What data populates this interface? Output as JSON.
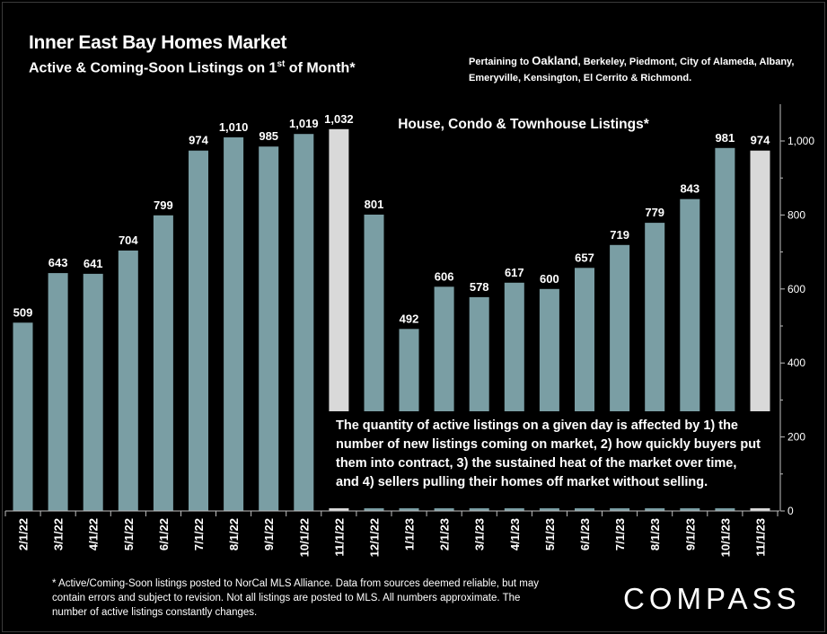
{
  "header": {
    "title": "Inner East Bay Homes Market",
    "subtitle_main": "Active & Coming-Soon Listings on 1",
    "subtitle_sup": "st",
    "subtitle_tail": " of Month*",
    "pertaining_prefix": "Pertaining to ",
    "pertaining_city": "Oakland",
    "pertaining_rest": ", Berkeley, Piedmont, City of Alameda, Albany, Emeryville, Kensington, El Cerrito & Richmond."
  },
  "annotation": "The quantity of active listings on a given day is affected by 1) the number of new listings coming on market, 2) how quickly buyers put them into contract, 3) the sustained heat of the market over time, and 4) sellers pulling their homes off market without selling.",
  "footnote": "* Active/Coming-Soon listings posted to NorCal MLS Alliance.  Data from sources deemed reliable, but may contain errors and subject to revision.  Not all listings are posted to MLS. All numbers approximate. The number of active listings constantly changes.",
  "logo": "COMPASS",
  "colors": {
    "background": "#000000",
    "bar": "#7a9ea4",
    "bar_highlight": "#d9d9d9",
    "text": "#ffffff"
  },
  "chart_data": {
    "type": "bar",
    "title": "House, Condo & Townhouse Listings*",
    "categories": [
      "2/1/22",
      "3/1/22",
      "4/1/22",
      "5/1/22",
      "6/1/22",
      "7/1/22",
      "8/1/22",
      "9/1/22",
      "10/1/22",
      "11/1/22",
      "12/1/22",
      "1/1/23",
      "2/1/23",
      "3/1/23",
      "4/1/23",
      "5/1/23",
      "6/1/23",
      "7/1/23",
      "8/1/23",
      "9/1/23",
      "10/1/23",
      "11/1/23"
    ],
    "values": [
      509,
      643,
      641,
      704,
      799,
      974,
      1010,
      985,
      1019,
      1032,
      801,
      492,
      606,
      578,
      617,
      600,
      657,
      719,
      779,
      843,
      981,
      974
    ],
    "labels": [
      "509",
      "643",
      "641",
      "704",
      "799",
      "974",
      "1,010",
      "985",
      "1,019",
      "1,032",
      "801",
      "492",
      "606",
      "578",
      "617",
      "600",
      "657",
      "719",
      "779",
      "843",
      "981",
      "974"
    ],
    "highlighted": [
      "11/1/22",
      "11/1/23"
    ],
    "ylim": [
      0,
      1100
    ],
    "y_ticks": [
      0,
      200,
      400,
      600,
      800,
      1000
    ],
    "y_tick_labels": [
      "0",
      "200",
      "400",
      "600",
      "800",
      "1,000"
    ],
    "y_axis_side": "right",
    "grid": false,
    "legend": "none"
  }
}
